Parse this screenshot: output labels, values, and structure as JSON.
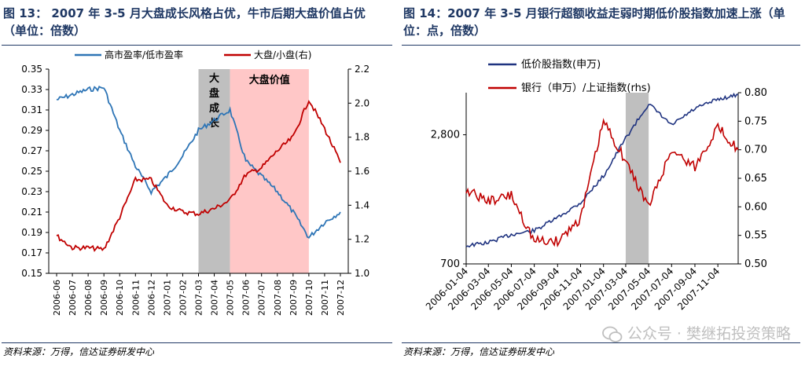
{
  "left": {
    "title": "图 13：  2007 年 3-5 月大盘成长风格占优，牛市后期大盘价值占优（单位：倍数）",
    "source": "资料来源：万得，信达证券研发中心"
  },
  "right": {
    "title": "图 14：2007 年 3-5 月银行超额收益走弱时期低价股指数加速上涨（单位：点，倍数）",
    "source": "资料来源：万得，信达证券研发中心"
  },
  "watermark": "公众号 · 樊继拓投资策略",
  "colors": {
    "blue": "#2e75b6",
    "red": "#c00000",
    "navy": "#1f3380",
    "title": "#1f3864"
  },
  "chart_data": [
    {
      "type": "line",
      "x_ticks": [
        "2006-06",
        "2006-07",
        "2006-08",
        "2006-09",
        "2006-10",
        "2006-11",
        "2006-12",
        "2007-01",
        "2007-02",
        "2007-03",
        "2007-04",
        "2007-05",
        "2007-06",
        "2007-07",
        "2007-08",
        "2007-09",
        "2007-10",
        "2007-11",
        "2007-12"
      ],
      "ylim_left": [
        0.15,
        0.35
      ],
      "yticks_left": [
        "0.15",
        "0.17",
        "0.19",
        "0.21",
        "0.23",
        "0.25",
        "0.27",
        "0.29",
        "0.31",
        "0.33",
        "0.35"
      ],
      "ylim_right": [
        1.0,
        2.2
      ],
      "yticks_right": [
        "1.0",
        "1.2",
        "1.4",
        "1.6",
        "1.8",
        "2.0",
        "2.2"
      ],
      "legend_position": "top",
      "shaded_regions": [
        {
          "label": "大盘成长",
          "from": "2007-03",
          "to": "2007-05",
          "color": "#bfbfbf"
        },
        {
          "label": "大盘价值",
          "from": "2007-05",
          "to": "2007-10",
          "color": "#ffc7c7"
        }
      ],
      "series": [
        {
          "name": "高市盈率/低市盈率",
          "axis": "left",
          "color": "#2e75b6",
          "x": [
            "2006-06",
            "2006-07",
            "2006-08",
            "2006-09",
            "2006-10",
            "2006-11",
            "2006-12",
            "2007-01",
            "2007-02",
            "2007-03",
            "2007-04",
            "2007-05",
            "2007-06",
            "2007-07",
            "2007-08",
            "2007-09",
            "2007-10",
            "2007-11",
            "2007-12"
          ],
          "y": [
            0.32,
            0.325,
            0.33,
            0.332,
            0.29,
            0.255,
            0.23,
            0.245,
            0.265,
            0.29,
            0.3,
            0.31,
            0.26,
            0.245,
            0.23,
            0.21,
            0.185,
            0.2,
            0.21
          ]
        },
        {
          "name": "大盘/小盘(右)",
          "axis": "right",
          "color": "#c00000",
          "x": [
            "2006-06",
            "2006-07",
            "2006-08",
            "2006-09",
            "2006-10",
            "2006-11",
            "2006-12",
            "2007-01",
            "2007-02",
            "2007-03",
            "2007-04",
            "2007-05",
            "2007-06",
            "2007-07",
            "2007-08",
            "2007-09",
            "2007-10",
            "2007-11",
            "2007-12"
          ],
          "y": [
            1.22,
            1.15,
            1.15,
            1.14,
            1.33,
            1.55,
            1.55,
            1.4,
            1.36,
            1.35,
            1.38,
            1.43,
            1.58,
            1.62,
            1.72,
            1.8,
            2.02,
            1.85,
            1.65
          ]
        }
      ]
    },
    {
      "type": "line",
      "x_ticks": [
        "2006-01-04",
        "2006-03-04",
        "2006-05-04",
        "2006-07-04",
        "2006-09-04",
        "2006-11-04",
        "2007-01-04",
        "2007-03-04",
        "2007-05-04",
        "2007-07-04",
        "2007-09-04",
        "2007-11-04"
      ],
      "ylim_left": [
        700,
        4400
      ],
      "log_scale_left": true,
      "yticks_left": [
        "700",
        "2,800"
      ],
      "ylim_right": [
        0.5,
        0.8
      ],
      "yticks_right": [
        "0.50",
        "0.55",
        "0.60",
        "0.65",
        "0.70",
        "0.75",
        "0.80"
      ],
      "legend_position": "top-left",
      "shaded_regions": [
        {
          "label": "",
          "from": "2007-03-04",
          "to": "2007-05-04",
          "color": "#bfbfbf"
        }
      ],
      "series": [
        {
          "name": "低价股指数(申万)",
          "axis": "left",
          "color": "#1f3380",
          "x": [
            "2006-01-04",
            "2006-03-04",
            "2006-05-04",
            "2006-07-04",
            "2006-09-04",
            "2006-11-04",
            "2007-01-04",
            "2007-03-04",
            "2007-05-04",
            "2007-07-04",
            "2007-09-04",
            "2007-11-04",
            "2007-12-28"
          ],
          "y": [
            850,
            880,
            960,
            1000,
            1150,
            1350,
            1800,
            2700,
            3900,
            3100,
            3700,
            4100,
            4300
          ]
        },
        {
          "name": "银行（申万）/上证指数(rhs)",
          "axis": "right",
          "color": "#c00000",
          "x": [
            "2006-01-04",
            "2006-03-04",
            "2006-05-04",
            "2006-07-04",
            "2006-09-04",
            "2006-11-04",
            "2007-01-04",
            "2007-03-04",
            "2007-05-04",
            "2007-07-04",
            "2007-09-04",
            "2007-11-04",
            "2007-12-28"
          ],
          "y": [
            0.63,
            0.61,
            0.62,
            0.54,
            0.54,
            0.58,
            0.75,
            0.68,
            0.6,
            0.7,
            0.67,
            0.74,
            0.7
          ]
        }
      ]
    }
  ]
}
